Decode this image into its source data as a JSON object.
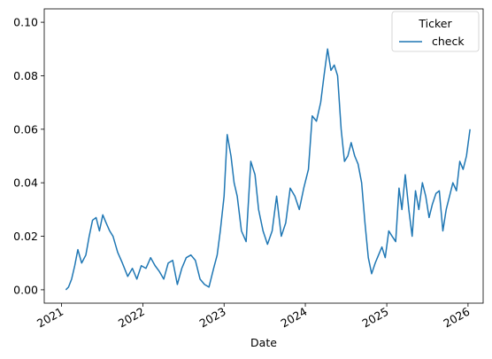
{
  "chart_data": {
    "type": "line",
    "title": "",
    "xlabel": "Date",
    "ylabel": "",
    "x_range": [
      "2020-10-15",
      "2026-03-10"
    ],
    "ylim": [
      -0.005,
      0.105
    ],
    "grid": false,
    "legend": {
      "title": "Ticker",
      "placement": "top-right"
    },
    "x_ticks": [
      {
        "date": "2021-01-01",
        "label": "2021"
      },
      {
        "date": "2022-01-01",
        "label": "2022"
      },
      {
        "date": "2023-01-01",
        "label": "2023"
      },
      {
        "date": "2024-01-01",
        "label": "2024"
      },
      {
        "date": "2025-01-01",
        "label": "2025"
      },
      {
        "date": "2026-01-01",
        "label": "2026"
      }
    ],
    "y_ticks": [
      {
        "value": 0.0,
        "label": "0.00"
      },
      {
        "value": 0.02,
        "label": "0.02"
      },
      {
        "value": 0.04,
        "label": "0.04"
      },
      {
        "value": 0.06,
        "label": "0.06"
      },
      {
        "value": 0.08,
        "label": "0.08"
      },
      {
        "value": 0.1,
        "label": "0.10"
      }
    ],
    "series": [
      {
        "name": "check",
        "color": "#1f77b4",
        "x": [
          "2021-01-20",
          "2021-02-01",
          "2021-02-15",
          "2021-03-01",
          "2021-03-15",
          "2021-04-01",
          "2021-04-20",
          "2021-05-05",
          "2021-05-20",
          "2021-06-05",
          "2021-06-20",
          "2021-07-05",
          "2021-07-20",
          "2021-08-05",
          "2021-08-20",
          "2021-09-10",
          "2021-10-01",
          "2021-10-25",
          "2021-11-15",
          "2021-12-05",
          "2021-12-25",
          "2022-01-15",
          "2022-02-05",
          "2022-02-25",
          "2022-03-15",
          "2022-04-05",
          "2022-04-25",
          "2022-05-15",
          "2022-06-05",
          "2022-06-25",
          "2022-07-15",
          "2022-08-05",
          "2022-08-25",
          "2022-09-15",
          "2022-10-05",
          "2022-10-25",
          "2022-11-15",
          "2022-12-01",
          "2022-12-15",
          "2023-01-01",
          "2023-01-15",
          "2023-02-01",
          "2023-02-15",
          "2023-03-01",
          "2023-03-20",
          "2023-04-10",
          "2023-05-01",
          "2023-05-20",
          "2023-06-05",
          "2023-06-25",
          "2023-07-15",
          "2023-08-05",
          "2023-08-25",
          "2023-09-15",
          "2023-10-05",
          "2023-10-25",
          "2023-11-15",
          "2023-12-05",
          "2023-12-25",
          "2024-01-15",
          "2024-02-01",
          "2024-02-20",
          "2024-03-10",
          "2024-03-25",
          "2024-04-10",
          "2024-04-25",
          "2024-05-10",
          "2024-05-25",
          "2024-06-10",
          "2024-06-25",
          "2024-07-10",
          "2024-07-25",
          "2024-08-10",
          "2024-08-25",
          "2024-09-10",
          "2024-09-25",
          "2024-10-10",
          "2024-10-25",
          "2024-11-10",
          "2024-11-25",
          "2024-12-10",
          "2024-12-25",
          "2025-01-10",
          "2025-01-25",
          "2025-02-10",
          "2025-02-25",
          "2025-03-10",
          "2025-03-25",
          "2025-04-10",
          "2025-04-25",
          "2025-05-10",
          "2025-05-25",
          "2025-06-10",
          "2025-06-25",
          "2025-07-10",
          "2025-07-25",
          "2025-08-10",
          "2025-08-25",
          "2025-09-10",
          "2025-09-25",
          "2025-10-10",
          "2025-10-25",
          "2025-11-10",
          "2025-11-25",
          "2025-12-10",
          "2025-12-25",
          "2026-01-10"
        ],
        "y": [
          0.0,
          0.001,
          0.004,
          0.009,
          0.015,
          0.01,
          0.013,
          0.02,
          0.026,
          0.027,
          0.022,
          0.028,
          0.025,
          0.022,
          0.02,
          0.014,
          0.01,
          0.005,
          0.008,
          0.004,
          0.009,
          0.008,
          0.012,
          0.009,
          0.007,
          0.004,
          0.01,
          0.011,
          0.002,
          0.008,
          0.012,
          0.013,
          0.011,
          0.004,
          0.002,
          0.001,
          0.008,
          0.013,
          0.022,
          0.035,
          0.058,
          0.05,
          0.04,
          0.035,
          0.022,
          0.018,
          0.048,
          0.043,
          0.03,
          0.022,
          0.017,
          0.022,
          0.035,
          0.02,
          0.025,
          0.038,
          0.035,
          0.03,
          0.038,
          0.045,
          0.065,
          0.063,
          0.07,
          0.08,
          0.09,
          0.082,
          0.084,
          0.08,
          0.06,
          0.048,
          0.05,
          0.055,
          0.05,
          0.047,
          0.04,
          0.025,
          0.012,
          0.006,
          0.01,
          0.013,
          0.016,
          0.012,
          0.022,
          0.02,
          0.018,
          0.038,
          0.03,
          0.043,
          0.03,
          0.02,
          0.037,
          0.03,
          0.04,
          0.035,
          0.027,
          0.032,
          0.036,
          0.037,
          0.022,
          0.03,
          0.035,
          0.04,
          0.037,
          0.048,
          0.045,
          0.05,
          0.06
        ]
      }
    ]
  }
}
